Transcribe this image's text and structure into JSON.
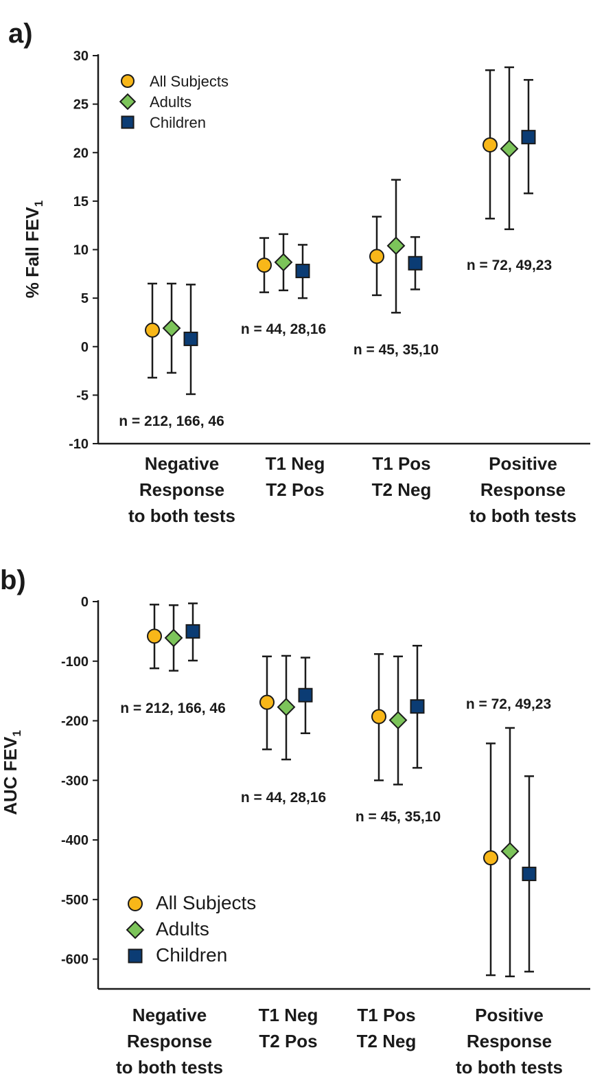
{
  "chart_data": [
    {
      "panel": "a)",
      "type": "scatter",
      "ylabel": "% Fall FEV",
      "ylabel_sub": "1",
      "ylim": [
        -10,
        30
      ],
      "yticks": [
        30,
        25,
        20,
        15,
        10,
        5,
        0,
        -5,
        -10
      ],
      "categories": [
        [
          "Negative",
          "Response",
          "to both tests"
        ],
        [
          "T1 Neg",
          "T2 Pos"
        ],
        [
          "T1 Pos",
          "T2 Neg"
        ],
        [
          "Positive",
          "Response",
          "to both tests"
        ]
      ],
      "n_labels": [
        "n = 212, 166, 46",
        "n = 44, 28,16",
        "n = 45, 35,10",
        "n = 72, 49,23"
      ],
      "legend_placement": "top-left",
      "series": [
        {
          "name": "All Subjects",
          "marker": "circle",
          "color": "#f8b719",
          "values": [
            1.7,
            8.4,
            9.3,
            20.8
          ],
          "lower": [
            -3.2,
            5.6,
            5.3,
            13.2
          ],
          "upper": [
            6.5,
            11.2,
            13.4,
            28.5
          ]
        },
        {
          "name": "Adults",
          "marker": "diamond",
          "color": "#7cc45a",
          "values": [
            1.9,
            8.7,
            10.4,
            20.4
          ],
          "lower": [
            -2.7,
            5.8,
            3.5,
            12.1
          ],
          "upper": [
            6.5,
            11.6,
            17.2,
            28.8
          ]
        },
        {
          "name": "Children",
          "marker": "square",
          "color": "#0b3c74",
          "values": [
            0.8,
            7.8,
            8.6,
            21.6
          ],
          "lower": [
            -4.9,
            5.0,
            5.9,
            15.8
          ],
          "upper": [
            6.4,
            10.5,
            11.3,
            27.5
          ]
        }
      ]
    },
    {
      "panel": "b)",
      "type": "scatter",
      "ylabel": "AUC FEV",
      "ylabel_sub": "1",
      "ylim": [
        -650,
        0
      ],
      "yticks": [
        0,
        -100,
        -200,
        -300,
        -400,
        -500,
        -600
      ],
      "categories": [
        [
          "Negative",
          "Response",
          "to both tests"
        ],
        [
          "T1 Neg",
          "T2 Pos"
        ],
        [
          "T1 Pos",
          "T2 Neg"
        ],
        [
          "Positive",
          "Response",
          "to both tests"
        ]
      ],
      "n_labels": [
        "n = 212, 166, 46",
        "n = 44, 28,16",
        "n = 45, 35,10",
        "n = 72, 49,23"
      ],
      "legend_placement": "bottom-left",
      "series": [
        {
          "name": "All Subjects",
          "marker": "circle",
          "color": "#f8b719",
          "values": [
            -58,
            -169,
            -193,
            -430
          ],
          "lower": [
            -112,
            -248,
            -300,
            -627
          ],
          "upper": [
            -5,
            -92,
            -88,
            -238
          ]
        },
        {
          "name": "Adults",
          "marker": "diamond",
          "color": "#7cc45a",
          "values": [
            -61,
            -177,
            -199,
            -419
          ],
          "lower": [
            -116,
            -265,
            -307,
            -629
          ],
          "upper": [
            -6,
            -91,
            -92,
            -212
          ]
        },
        {
          "name": "Children",
          "marker": "square",
          "color": "#0b3c74",
          "values": [
            -50,
            -157,
            -176,
            -457
          ],
          "lower": [
            -99,
            -221,
            -279,
            -621
          ],
          "upper": [
            -3,
            -94,
            -74,
            -293
          ]
        }
      ]
    }
  ]
}
